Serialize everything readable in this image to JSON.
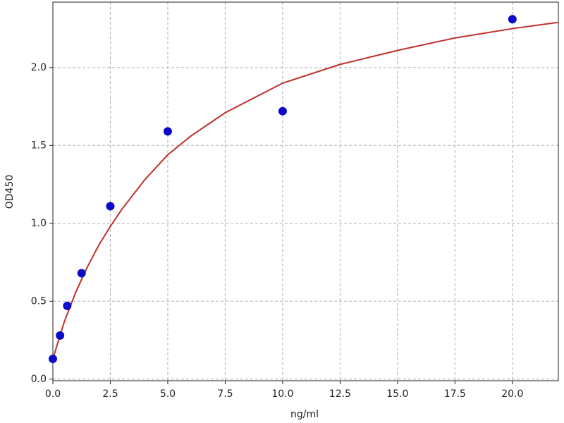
{
  "chart_data": {
    "type": "scatter",
    "x_label": "ng/ml",
    "y_label": "OD450",
    "series": [
      {
        "type": "scatter",
        "color": "#0a0ac8",
        "x": [
          0,
          0.3125,
          0.625,
          1.25,
          2.5,
          5,
          10,
          20
        ],
        "values": [
          0.13,
          0.28,
          0.47,
          0.68,
          1.11,
          1.59,
          1.72,
          2.31
        ]
      },
      {
        "type": "line",
        "color": "#c0302a",
        "x": [
          0,
          0.5,
          1,
          1.5,
          2,
          2.5,
          3,
          4,
          5,
          6,
          7.5,
          10,
          12.5,
          15,
          17.5,
          20,
          22
        ],
        "values": [
          0.13,
          0.37,
          0.56,
          0.72,
          0.86,
          0.98,
          1.09,
          1.28,
          1.44,
          1.56,
          1.71,
          1.9,
          2.02,
          2.11,
          2.19,
          2.25,
          2.29
        ]
      }
    ],
    "xlim": [
      0,
      22
    ],
    "ylim": [
      -0.01,
      2.42
    ],
    "xticks": [
      {
        "value": 0,
        "label": "0.0"
      },
      {
        "value": 2.5,
        "label": "2.5"
      },
      {
        "value": 5,
        "label": "5.0"
      },
      {
        "value": 7.5,
        "label": "7.5"
      },
      {
        "value": 10,
        "label": "10.0"
      },
      {
        "value": 12.5,
        "label": "12.5"
      },
      {
        "value": 15,
        "label": "15.0"
      },
      {
        "value": 17.5,
        "label": "17.5"
      },
      {
        "value": 20,
        "label": "20.0"
      }
    ],
    "yticks": [
      {
        "value": 0,
        "label": "0.0"
      },
      {
        "value": 0.5,
        "label": "0.5"
      },
      {
        "value": 1,
        "label": "1.0"
      },
      {
        "value": 1.5,
        "label": "1.5"
      },
      {
        "value": 2,
        "label": "2.0"
      }
    ],
    "grid": true
  }
}
